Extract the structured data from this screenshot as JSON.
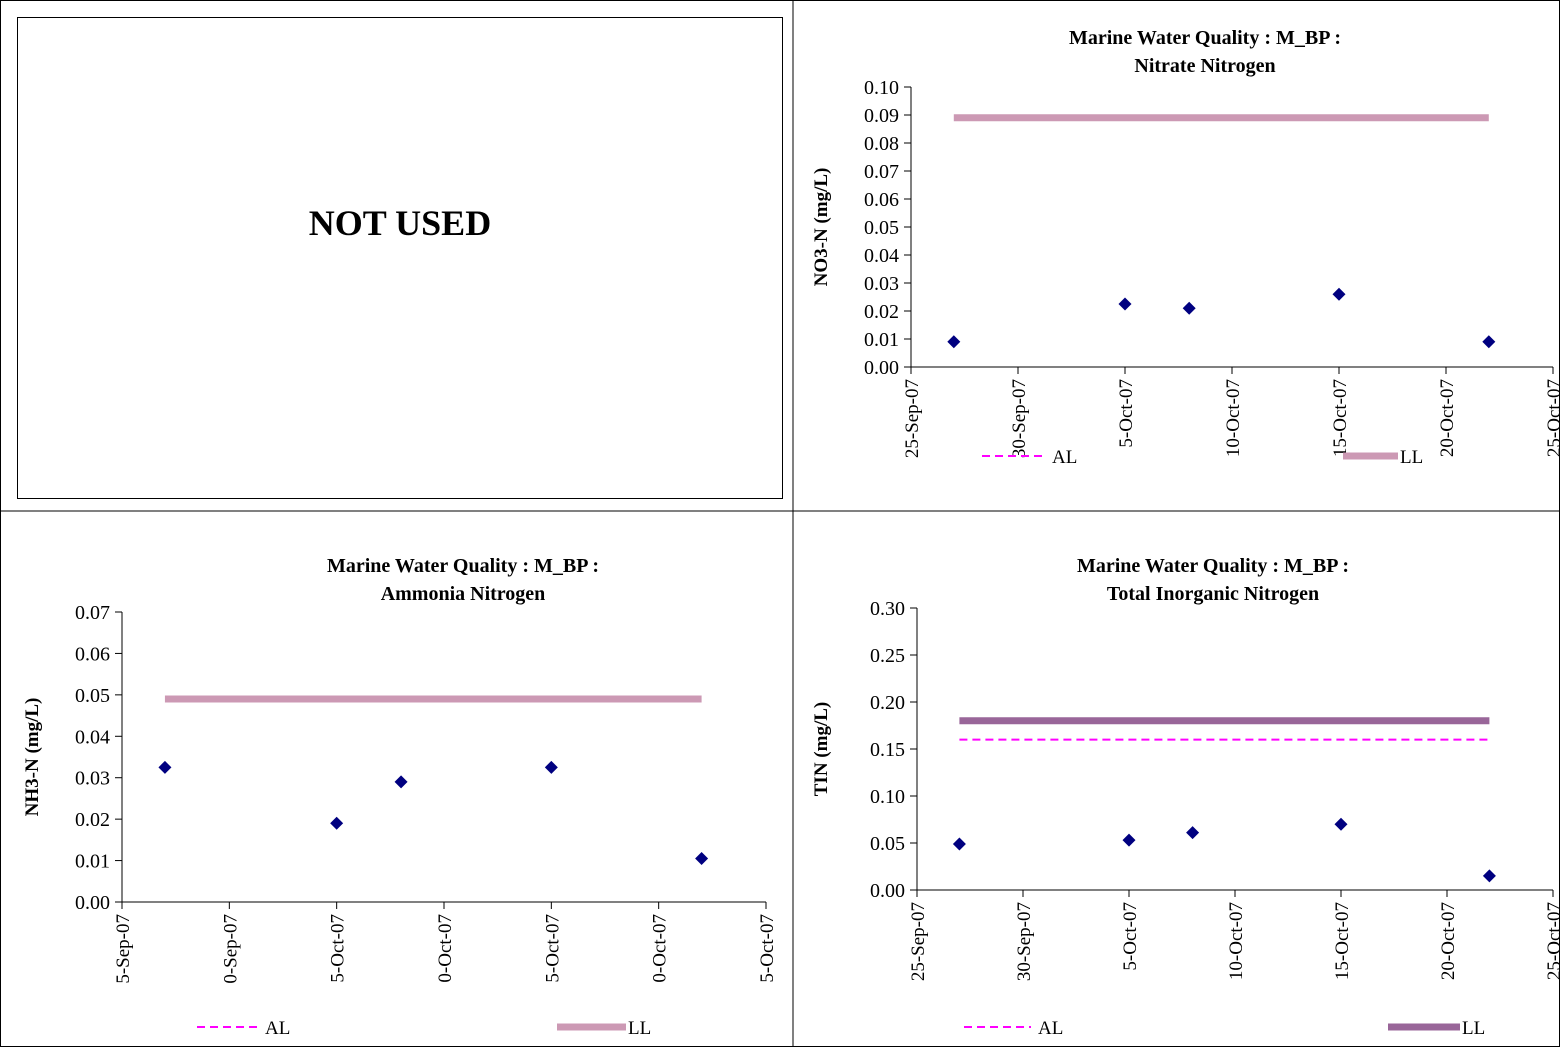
{
  "panel_text": "NOT USED",
  "chart_data": [
    {
      "type": "scatter",
      "title": [
        "Marine Water Quality : M_BP :",
        "Nitrate Nitrogen"
      ],
      "ylabel": "NO3-N (mg/L)",
      "xlabel": "",
      "x_tick_labels": [
        "25-Sep-07",
        "30-Sep-07",
        "5-Oct-07",
        "10-Oct-07",
        "15-Oct-07",
        "20-Oct-07",
        "25-Oct-07"
      ],
      "y_ticks": [
        "0.00",
        "0.01",
        "0.02",
        "0.03",
        "0.04",
        "0.05",
        "0.06",
        "0.07",
        "0.08",
        "0.09",
        "0.10"
      ],
      "ylim": [
        0,
        0.1
      ],
      "xlim_days": [
        0,
        30
      ],
      "points": [
        {
          "x": "27-Sep-07",
          "y": 0.009
        },
        {
          "x": "5-Oct-07",
          "y": 0.0225
        },
        {
          "x": "8-Oct-07",
          "y": 0.021
        },
        {
          "x": "15-Oct-07",
          "y": 0.026
        },
        {
          "x": "22-Oct-07",
          "y": 0.009
        }
      ],
      "series": [
        {
          "name": "AL",
          "style": "dashed",
          "color": "#ff00ff",
          "value": null
        },
        {
          "name": "LL",
          "style": "solid-thick",
          "color": "#cc99b4",
          "value": 0.089,
          "x_range": [
            "27-Sep-07",
            "22-Oct-07"
          ]
        }
      ],
      "marker_color": "#000080",
      "legend": "bottom",
      "grid": false
    },
    {
      "type": "scatter",
      "title": [
        "Marine Water Quality : M_BP :",
        "Ammonia Nitrogen"
      ],
      "ylabel": "NH3-N (mg/L)",
      "xlabel": "",
      "x_tick_labels": [
        "5-Sep-07",
        "0-Sep-07",
        "5-Oct-07",
        "0-Oct-07",
        "5-Oct-07",
        "0-Oct-07",
        "5-Oct-07"
      ],
      "y_ticks": [
        "0.00",
        "0.01",
        "0.02",
        "0.03",
        "0.04",
        "0.05",
        "0.06",
        "0.07"
      ],
      "ylim": [
        0,
        0.07
      ],
      "xlim_days": [
        0,
        30
      ],
      "points": [
        {
          "x": "27-Sep-07",
          "y": 0.0325
        },
        {
          "x": "5-Oct-07",
          "y": 0.019
        },
        {
          "x": "8-Oct-07",
          "y": 0.029
        },
        {
          "x": "15-Oct-07",
          "y": 0.0325
        },
        {
          "x": "22-Oct-07",
          "y": 0.0105
        }
      ],
      "series": [
        {
          "name": "AL",
          "style": "dashed",
          "color": "#ff00ff",
          "value": null
        },
        {
          "name": "LL",
          "style": "solid-thick",
          "color": "#cc99b4",
          "value": 0.049,
          "x_range": [
            "27-Sep-07",
            "22-Oct-07"
          ]
        }
      ],
      "marker_color": "#000080",
      "legend": "bottom",
      "grid": false
    },
    {
      "type": "scatter",
      "title": [
        "Marine Water Quality : M_BP :",
        "Total Inorganic Nitrogen"
      ],
      "ylabel": "TIN (mg/L)",
      "xlabel": "",
      "x_tick_labels": [
        "25-Sep-07",
        "30-Sep-07",
        "5-Oct-07",
        "10-Oct-07",
        "15-Oct-07",
        "20-Oct-07",
        "25-Oct-07"
      ],
      "y_ticks": [
        "0.00",
        "0.05",
        "0.10",
        "0.15",
        "0.20",
        "0.25",
        "0.30"
      ],
      "ylim": [
        0,
        0.3
      ],
      "xlim_days": [
        0,
        30
      ],
      "points": [
        {
          "x": "27-Sep-07",
          "y": 0.049
        },
        {
          "x": "5-Oct-07",
          "y": 0.053
        },
        {
          "x": "8-Oct-07",
          "y": 0.061
        },
        {
          "x": "15-Oct-07",
          "y": 0.07
        },
        {
          "x": "22-Oct-07",
          "y": 0.015
        }
      ],
      "series": [
        {
          "name": "AL",
          "style": "dashed",
          "color": "#ff00ff",
          "value": 0.16,
          "x_range": [
            "27-Sep-07",
            "22-Oct-07"
          ]
        },
        {
          "name": "LL",
          "style": "solid-thick",
          "color": "#996699",
          "value": 0.18,
          "x_range": [
            "27-Sep-07",
            "22-Oct-07"
          ]
        }
      ],
      "marker_color": "#000080",
      "legend": "bottom",
      "grid": false
    }
  ]
}
